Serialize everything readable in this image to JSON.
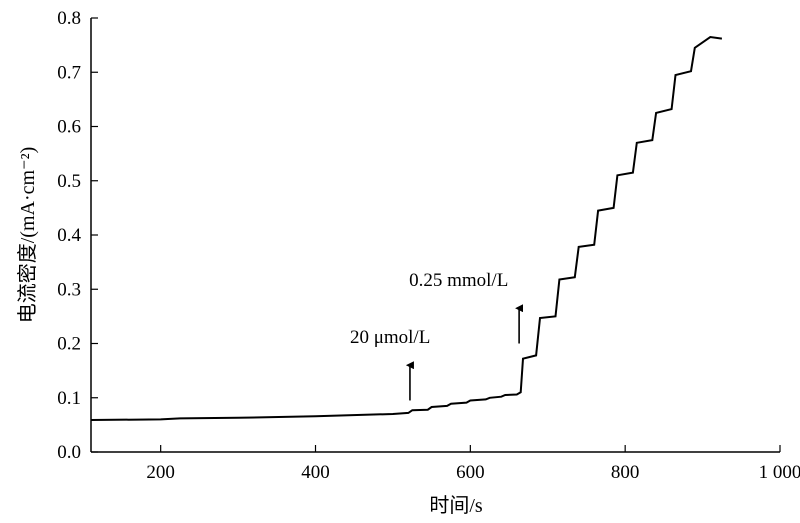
{
  "chart_data": {
    "type": "line",
    "xlabel": "时间/s",
    "ylabel": "电流密度/(mA·cm⁻²)",
    "xlim": [
      110,
      1000
    ],
    "ylim": [
      0,
      0.8
    ],
    "x_ticks": [
      200,
      400,
      600,
      800,
      1000
    ],
    "x_tick_labels": [
      "200",
      "400",
      "600",
      "800",
      "1 000"
    ],
    "y_ticks": [
      0.0,
      0.1,
      0.2,
      0.3,
      0.4,
      0.5,
      0.6,
      0.7,
      0.8
    ],
    "y_tick_labels": [
      "0.0",
      "0.1",
      "0.2",
      "0.3",
      "0.4",
      "0.5",
      "0.6",
      "0.7",
      "0.8"
    ],
    "grid": false,
    "series": [
      {
        "x": [
          110,
          200,
          225,
          300,
          400,
          500,
          520,
          525,
          545,
          550,
          570,
          575,
          595,
          600,
          620,
          625,
          640,
          645,
          660,
          665,
          668,
          685,
          690,
          710,
          715,
          735,
          740,
          760,
          765,
          785,
          790,
          810,
          815,
          835,
          840,
          860,
          865,
          885,
          890,
          905,
          910,
          925
        ],
        "y": [
          0.059,
          0.06,
          0.062,
          0.063,
          0.066,
          0.07,
          0.072,
          0.077,
          0.078,
          0.083,
          0.085,
          0.089,
          0.091,
          0.095,
          0.097,
          0.1,
          0.102,
          0.105,
          0.106,
          0.11,
          0.172,
          0.178,
          0.247,
          0.25,
          0.318,
          0.322,
          0.378,
          0.382,
          0.445,
          0.45,
          0.51,
          0.515,
          0.57,
          0.575,
          0.625,
          0.632,
          0.695,
          0.702,
          0.745,
          0.76,
          0.765,
          0.762
        ]
      }
    ],
    "annotations": [
      {
        "text": "20 μmol/L",
        "arrow_x": 522,
        "arrow_y_from": 0.095,
        "arrow_y_to": 0.16
      },
      {
        "text": "0.25 mmol/L",
        "arrow_x": 663,
        "arrow_y_from": 0.2,
        "arrow_y_to": 0.265
      }
    ]
  }
}
